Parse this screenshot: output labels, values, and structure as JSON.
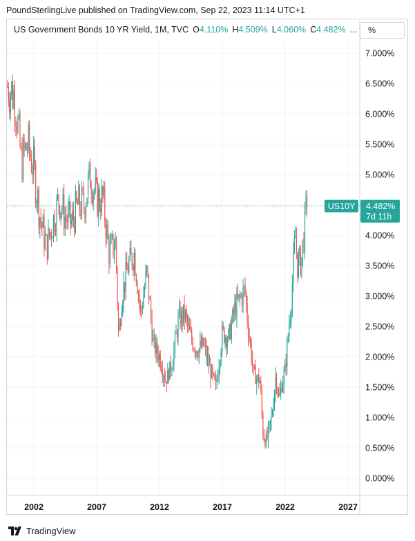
{
  "publisher_line": "PoundSterlingLive published on TradingView.com, Sep 22, 2023 11:14 UTC+1",
  "legend": {
    "symbol": "US Government Bonds 10 YR Yield, 1M, TVC",
    "o_label": "O",
    "o_value": "4.110%",
    "h_label": "H",
    "h_value": "4.509%",
    "l_label": "L",
    "l_value": "4.060%",
    "c_label": "C",
    "c_value": "4.482%",
    "ellipsis": "..."
  },
  "unit_button": "%",
  "colors": {
    "up": "#26a69a",
    "down": "#ef5350",
    "price_tag": "#26a69a",
    "grid": "#f0f3fa"
  },
  "price_tag": {
    "symbol": "US10Y",
    "value": "4.482%",
    "countdown": "7d 11h"
  },
  "footer": {
    "brand": "TradingView",
    "logo": "tradingview-logo-icon"
  },
  "chart_data": {
    "type": "candlestick",
    "interval": "1M",
    "y_ticks": [
      "7.000%",
      "6.500%",
      "6.000%",
      "5.500%",
      "5.000%",
      "4.500%",
      "4.000%",
      "3.500%",
      "3.000%",
      "2.500%",
      "2.000%",
      "1.500%",
      "1.000%",
      "0.500%",
      "0.000%"
    ],
    "x_ticks": [
      "2002",
      "2007",
      "2012",
      "2017",
      "2022",
      "2027"
    ],
    "ylim": [
      0,
      7
    ],
    "xlim": [
      2000.0,
      2028.0
    ],
    "grid": true,
    "last_close": 4.482,
    "candles": [
      [
        2000.0,
        6.45
      ],
      [
        2000.5,
        6.3
      ],
      [
        2001.0,
        5.2
      ],
      [
        2001.5,
        5.5
      ],
      [
        2002.0,
        5.1
      ],
      [
        2002.5,
        4.3
      ],
      [
        2003.0,
        3.8
      ],
      [
        2003.5,
        4.2
      ],
      [
        2004.0,
        4.6
      ],
      [
        2004.5,
        4.3
      ],
      [
        2005.0,
        4.2
      ],
      [
        2005.5,
        4.5
      ],
      [
        2006.0,
        4.5
      ],
      [
        2006.5,
        5.0
      ],
      [
        2007.0,
        4.6
      ],
      [
        2007.5,
        4.6
      ],
      [
        2008.0,
        3.7
      ],
      [
        2008.5,
        3.9
      ],
      [
        2008.75,
        2.3
      ],
      [
        2009.0,
        3.0
      ],
      [
        2009.5,
        3.5
      ],
      [
        2010.0,
        3.7
      ],
      [
        2010.5,
        2.7
      ],
      [
        2011.0,
        3.4
      ],
      [
        2011.5,
        2.2
      ],
      [
        2012.0,
        2.0
      ],
      [
        2012.5,
        1.6
      ],
      [
        2013.0,
        1.9
      ],
      [
        2013.5,
        2.6
      ],
      [
        2014.0,
        2.7
      ],
      [
        2014.5,
        2.3
      ],
      [
        2015.0,
        2.1
      ],
      [
        2015.5,
        2.2
      ],
      [
        2016.0,
        1.8
      ],
      [
        2016.5,
        1.5
      ],
      [
        2017.0,
        2.4
      ],
      [
        2017.5,
        2.3
      ],
      [
        2018.0,
        2.8
      ],
      [
        2018.8,
        3.1
      ],
      [
        2019.0,
        2.6
      ],
      [
        2019.5,
        1.7
      ],
      [
        2020.0,
        1.6
      ],
      [
        2020.25,
        0.7
      ],
      [
        2020.5,
        0.6
      ],
      [
        2021.0,
        1.1
      ],
      [
        2021.25,
        1.7
      ],
      [
        2021.5,
        1.3
      ],
      [
        2022.0,
        1.8
      ],
      [
        2022.5,
        3.0
      ],
      [
        2022.8,
        4.0
      ],
      [
        2023.0,
        3.5
      ],
      [
        2023.3,
        3.6
      ],
      [
        2023.7,
        4.482
      ]
    ]
  }
}
